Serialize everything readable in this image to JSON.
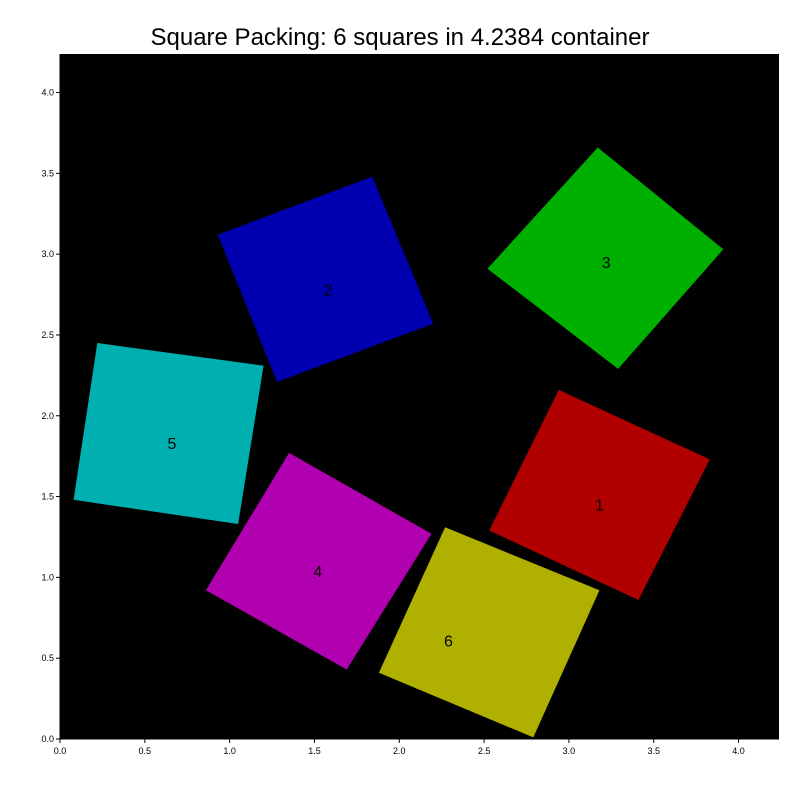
{
  "chart_data": {
    "type": "scatter",
    "title": "Square Packing: 6 squares in 4.2384 container",
    "xlabel": "",
    "ylabel": "",
    "xlim": [
      0,
      4.2384
    ],
    "ylim": [
      0,
      4.2384
    ],
    "x_ticks": [
      "0.0",
      "0.5",
      "1.0",
      "1.5",
      "2.0",
      "2.5",
      "3.0",
      "3.5",
      "4.0"
    ],
    "y_ticks": [
      "0.0",
      "0.5",
      "1.0",
      "1.5",
      "2.0",
      "2.5",
      "3.0",
      "3.5",
      "4.0"
    ],
    "grid": false,
    "background_color": "#000000",
    "squares": [
      {
        "label": "1",
        "color": "#b00000",
        "center": [
          3.18,
          1.45
        ],
        "corners": [
          [
            2.53,
            1.29
          ],
          [
            2.94,
            2.16
          ],
          [
            3.83,
            1.73
          ],
          [
            3.41,
            0.86
          ]
        ]
      },
      {
        "label": "2",
        "color": "#0000b0",
        "center": [
          1.58,
          2.78
        ],
        "corners": [
          [
            0.93,
            3.12
          ],
          [
            1.84,
            3.48
          ],
          [
            2.2,
            2.57
          ],
          [
            1.28,
            2.21
          ]
        ]
      },
      {
        "label": "3",
        "color": "#00b000",
        "center": [
          3.22,
          2.95
        ],
        "corners": [
          [
            2.52,
            2.91
          ],
          [
            3.17,
            3.66
          ],
          [
            3.91,
            3.03
          ],
          [
            3.29,
            2.29
          ]
        ]
      },
      {
        "label": "4",
        "color": "#b000b0",
        "center": [
          1.52,
          1.04
        ],
        "corners": [
          [
            0.86,
            0.92
          ],
          [
            1.35,
            1.77
          ],
          [
            2.19,
            1.27
          ],
          [
            1.69,
            0.43
          ]
        ]
      },
      {
        "label": "5",
        "color": "#00b0b0",
        "center": [
          0.66,
          1.83
        ],
        "corners": [
          [
            0.08,
            1.48
          ],
          [
            0.22,
            2.45
          ],
          [
            1.2,
            2.31
          ],
          [
            1.05,
            1.33
          ]
        ]
      },
      {
        "label": "6",
        "color": "#b0b000",
        "center": [
          2.29,
          0.61
        ],
        "corners": [
          [
            1.88,
            0.41
          ],
          [
            2.27,
            1.31
          ],
          [
            3.18,
            0.92
          ],
          [
            2.79,
            0.01
          ]
        ]
      }
    ]
  }
}
